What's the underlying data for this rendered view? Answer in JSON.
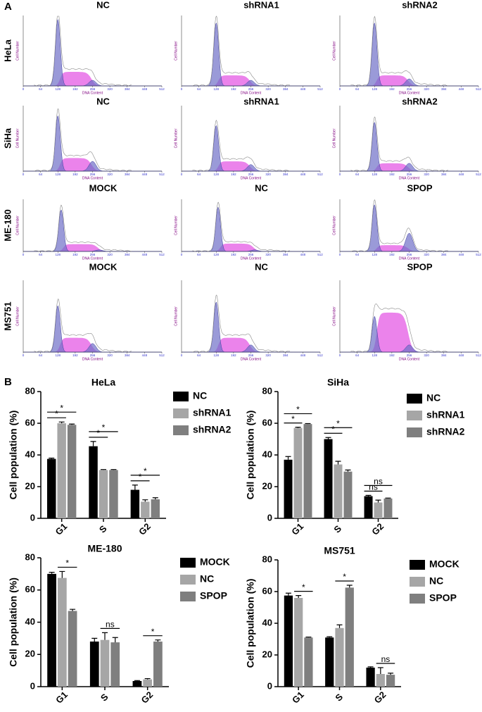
{
  "panel_a": {
    "label": "A",
    "x_label": "DNA Content",
    "y_label": "Cell Number",
    "xticks": [
      0,
      64,
      128,
      192,
      256,
      320,
      384,
      448,
      512
    ],
    "rows": [
      {
        "name": "HeLa",
        "plots": [
          "NC",
          "shRNA1",
          "shRNA2"
        ]
      },
      {
        "name": "SiHa",
        "plots": [
          "NC",
          "shRNA1",
          "shRNA2"
        ]
      },
      {
        "name": "ME-180",
        "plots": [
          "MOCK",
          "NC",
          "SPOP"
        ]
      },
      {
        "name": "MS751",
        "plots": [
          "MOCK",
          "NC",
          "SPOP"
        ]
      }
    ]
  },
  "panel_b": {
    "label": "B"
  },
  "chart_data": [
    {
      "type": "bar",
      "title": "HeLa",
      "y_label": "Cell population (%)",
      "categories": [
        "G1",
        "S",
        "G2"
      ],
      "ylim": [
        0,
        80
      ],
      "yticks": [
        0,
        20,
        40,
        60,
        80
      ],
      "series": [
        {
          "name": "NC",
          "color": "#000000",
          "values": [
            37.5,
            45.5,
            18
          ],
          "errors": [
            0.5,
            3,
            3
          ]
        },
        {
          "name": "shRNA1",
          "color": "#a6a6a6",
          "values": [
            60,
            30.5,
            10.5
          ],
          "errors": [
            0.8,
            0.3,
            1.2
          ]
        },
        {
          "name": "shRNA2",
          "color": "#7f7f7f",
          "values": [
            59,
            30.5,
            12
          ],
          "errors": [
            0.5,
            0.3,
            1
          ]
        }
      ],
      "annotations": [
        {
          "category": 0,
          "from": 0,
          "to": 1,
          "label": "*"
        },
        {
          "category": 0,
          "from": 0,
          "to": 2,
          "label": "*"
        },
        {
          "category": 1,
          "from": 0,
          "to": 1,
          "label": "*"
        },
        {
          "category": 1,
          "from": 0,
          "to": 2,
          "label": "*"
        },
        {
          "category": 2,
          "from": 0,
          "to": 1,
          "label": "*"
        },
        {
          "category": 2,
          "from": 0,
          "to": 2,
          "label": "*"
        }
      ]
    },
    {
      "type": "bar",
      "title": "SiHa",
      "y_label": "Cell population (%)",
      "categories": [
        "G1",
        "S",
        "G2"
      ],
      "ylim": [
        0,
        80
      ],
      "yticks": [
        0,
        20,
        40,
        60,
        80
      ],
      "series": [
        {
          "name": "NC",
          "color": "#000000",
          "values": [
            37,
            50,
            14
          ],
          "errors": [
            2,
            1,
            0.5
          ]
        },
        {
          "name": "shRNA1",
          "color": "#a6a6a6",
          "values": [
            57,
            34,
            10
          ],
          "errors": [
            0.5,
            2,
            1.5
          ]
        },
        {
          "name": "shRNA2",
          "color": "#7f7f7f",
          "values": [
            59.5,
            29.5,
            12.5
          ],
          "errors": [
            0.3,
            1,
            0.3
          ]
        }
      ],
      "annotations": [
        {
          "category": 0,
          "from": 0,
          "to": 1,
          "label": "*"
        },
        {
          "category": 0,
          "from": 0,
          "to": 2,
          "label": "*"
        },
        {
          "category": 1,
          "from": 0,
          "to": 1,
          "label": "*"
        },
        {
          "category": 1,
          "from": 0,
          "to": 2,
          "label": "*"
        },
        {
          "category": 2,
          "from": 0,
          "to": 1,
          "label": "ns"
        },
        {
          "category": 2,
          "from": 0,
          "to": 2,
          "label": "ns"
        }
      ]
    },
    {
      "type": "bar",
      "title": "ME-180",
      "y_label": "Cell population (%)",
      "categories": [
        "G1",
        "S",
        "G2"
      ],
      "ylim": [
        0,
        80
      ],
      "yticks": [
        0,
        20,
        40,
        60,
        80
      ],
      "series": [
        {
          "name": "MOCK",
          "color": "#000000",
          "values": [
            70,
            28,
            3.5
          ],
          "errors": [
            1,
            2,
            0.3
          ]
        },
        {
          "name": "NC",
          "color": "#a6a6a6",
          "values": [
            67.5,
            29,
            4.5
          ],
          "errors": [
            4,
            4.5,
            0.5
          ]
        },
        {
          "name": "SPOP",
          "color": "#7f7f7f",
          "values": [
            47,
            27.5,
            28
          ],
          "errors": [
            1,
            3,
            1
          ]
        }
      ],
      "annotations": [
        {
          "category": 0,
          "from": 1,
          "to": 2,
          "label": "*"
        },
        {
          "category": 1,
          "from": 1,
          "to": 2,
          "label": "ns"
        },
        {
          "category": 2,
          "from": 1,
          "to": 2,
          "label": "*"
        }
      ]
    },
    {
      "type": "bar",
      "title": "MS751",
      "y_label": "Cell population (%)",
      "categories": [
        "G1",
        "S",
        "G2"
      ],
      "ylim": [
        0,
        80
      ],
      "yticks": [
        0,
        20,
        40,
        60,
        80
      ],
      "series": [
        {
          "name": "MOCK",
          "color": "#000000",
          "values": [
            57.5,
            31,
            12
          ],
          "errors": [
            1.5,
            0.5,
            0.5
          ]
        },
        {
          "name": "NC",
          "color": "#a6a6a6",
          "values": [
            56,
            37,
            8
          ],
          "errors": [
            1.5,
            2,
            4
          ]
        },
        {
          "name": "SPOP",
          "color": "#7f7f7f",
          "values": [
            31,
            62.5,
            7.5
          ],
          "errors": [
            0.3,
            1.5,
            1
          ]
        }
      ],
      "annotations": [
        {
          "category": 0,
          "from": 1,
          "to": 2,
          "label": "*"
        },
        {
          "category": 1,
          "from": 1,
          "to": 2,
          "label": "*"
        },
        {
          "category": 2,
          "from": 1,
          "to": 2,
          "label": "ns"
        }
      ]
    }
  ]
}
